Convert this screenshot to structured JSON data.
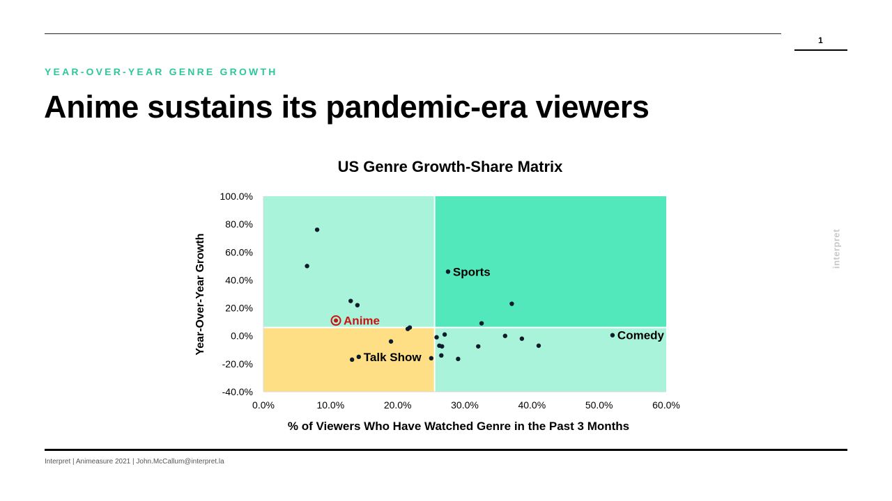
{
  "page": {
    "page_number": "1",
    "kicker": "YEAR-OVER-YEAR GENRE GROWTH",
    "headline": "Anime sustains its pandemic-era viewers",
    "side_brand": "interpret",
    "footer": "Interpret | Animeasure 2021 | John.McCallum@interpret.la"
  },
  "chart_data": {
    "type": "scatter",
    "title": "US Genre Growth-Share Matrix",
    "xlabel": "% of Viewers Who Have Watched Genre in the Past 3 Months",
    "ylabel": "Year-Over-Year Growth",
    "xlim": [
      0,
      60
    ],
    "ylim": [
      -40,
      100
    ],
    "x_ticks": [
      "0.0%",
      "10.0%",
      "20.0%",
      "30.0%",
      "40.0%",
      "50.0%",
      "60.0%"
    ],
    "y_ticks": [
      "100.0%",
      "80.0%",
      "60.0%",
      "40.0%",
      "20.0%",
      "0.0%",
      "-20.0%",
      "-40.0%"
    ],
    "grid": false,
    "quadrant_split": {
      "x": 25.5,
      "y": 6
    },
    "quadrant_colors": {
      "top_left": "#a8f3da",
      "top_right": "#52e8bb",
      "bottom_left": "#ffdf85",
      "bottom_right": "#a8f3da"
    },
    "point_color": "#0d1b2a",
    "highlight_color": "#cc1111",
    "points": [
      {
        "x": 8.0,
        "y": 76.0
      },
      {
        "x": 6.5,
        "y": 50.0
      },
      {
        "x": 13.0,
        "y": 25.0
      },
      {
        "x": 14.0,
        "y": 22.0
      },
      {
        "x": 10.8,
        "y": 11.0,
        "label": "Anime",
        "highlight": true
      },
      {
        "x": 21.5,
        "y": 5.0
      },
      {
        "x": 21.8,
        "y": 6.0
      },
      {
        "x": 19.0,
        "y": -4.0
      },
      {
        "x": 13.2,
        "y": -17.0
      },
      {
        "x": 14.2,
        "y": -15.0,
        "label": "Talk Show"
      },
      {
        "x": 25.0,
        "y": -16.0
      },
      {
        "x": 27.5,
        "y": 46.0,
        "label": "Sports"
      },
      {
        "x": 37.0,
        "y": 23.0
      },
      {
        "x": 32.5,
        "y": 9.0
      },
      {
        "x": 27.0,
        "y": 1.0
      },
      {
        "x": 25.8,
        "y": -1.0
      },
      {
        "x": 26.2,
        "y": -7.0
      },
      {
        "x": 26.6,
        "y": -7.5
      },
      {
        "x": 26.5,
        "y": -14.0
      },
      {
        "x": 29.0,
        "y": -16.5
      },
      {
        "x": 32.0,
        "y": -7.5
      },
      {
        "x": 36.0,
        "y": 0.0
      },
      {
        "x": 38.5,
        "y": -2.0
      },
      {
        "x": 41.0,
        "y": -7.0
      },
      {
        "x": 52.0,
        "y": 0.5,
        "label": "Comedy"
      }
    ]
  }
}
